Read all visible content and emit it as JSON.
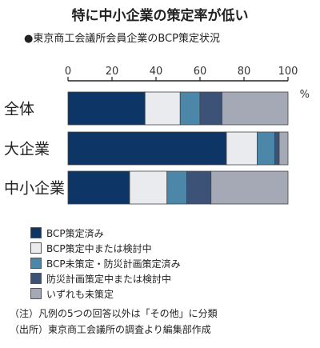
{
  "chart_data": {
    "type": "bar",
    "orientation": "horizontal",
    "stacked": true,
    "title": "特に中小企業の策定率が低い",
    "subtitle": "●東京商工会議所会員企業のBCP策定状況",
    "unit": "%",
    "categories": [
      "全体",
      "大企業",
      "中小企業"
    ],
    "xlim": [
      0,
      100
    ],
    "ticks": [
      0,
      20,
      40,
      60,
      80,
      100
    ],
    "series": [
      {
        "name": "BCP策定済み",
        "color": "#0d3565",
        "values": [
          35,
          72,
          28
        ]
      },
      {
        "name": "BCP策定中または検討中",
        "color": "#e9ebef",
        "values": [
          16,
          14,
          17
        ]
      },
      {
        "name": "BCP未策定・防災計画策定済み",
        "color": "#4c87a9",
        "values": [
          9,
          8,
          9
        ]
      },
      {
        "name": "防災計画策定中または検討中",
        "color": "#3c5277",
        "values": [
          10,
          2,
          11
        ]
      },
      {
        "name": "いずれも未策定",
        "color": "#a5a9b6",
        "values": [
          30,
          4,
          35
        ]
      }
    ],
    "grid": false,
    "legend": "bottom"
  },
  "notes": [
    "（注）凡例の5つの回答以外は「その他」に分類",
    "（出所）東京商工会議所の調査より編集部作成"
  ]
}
